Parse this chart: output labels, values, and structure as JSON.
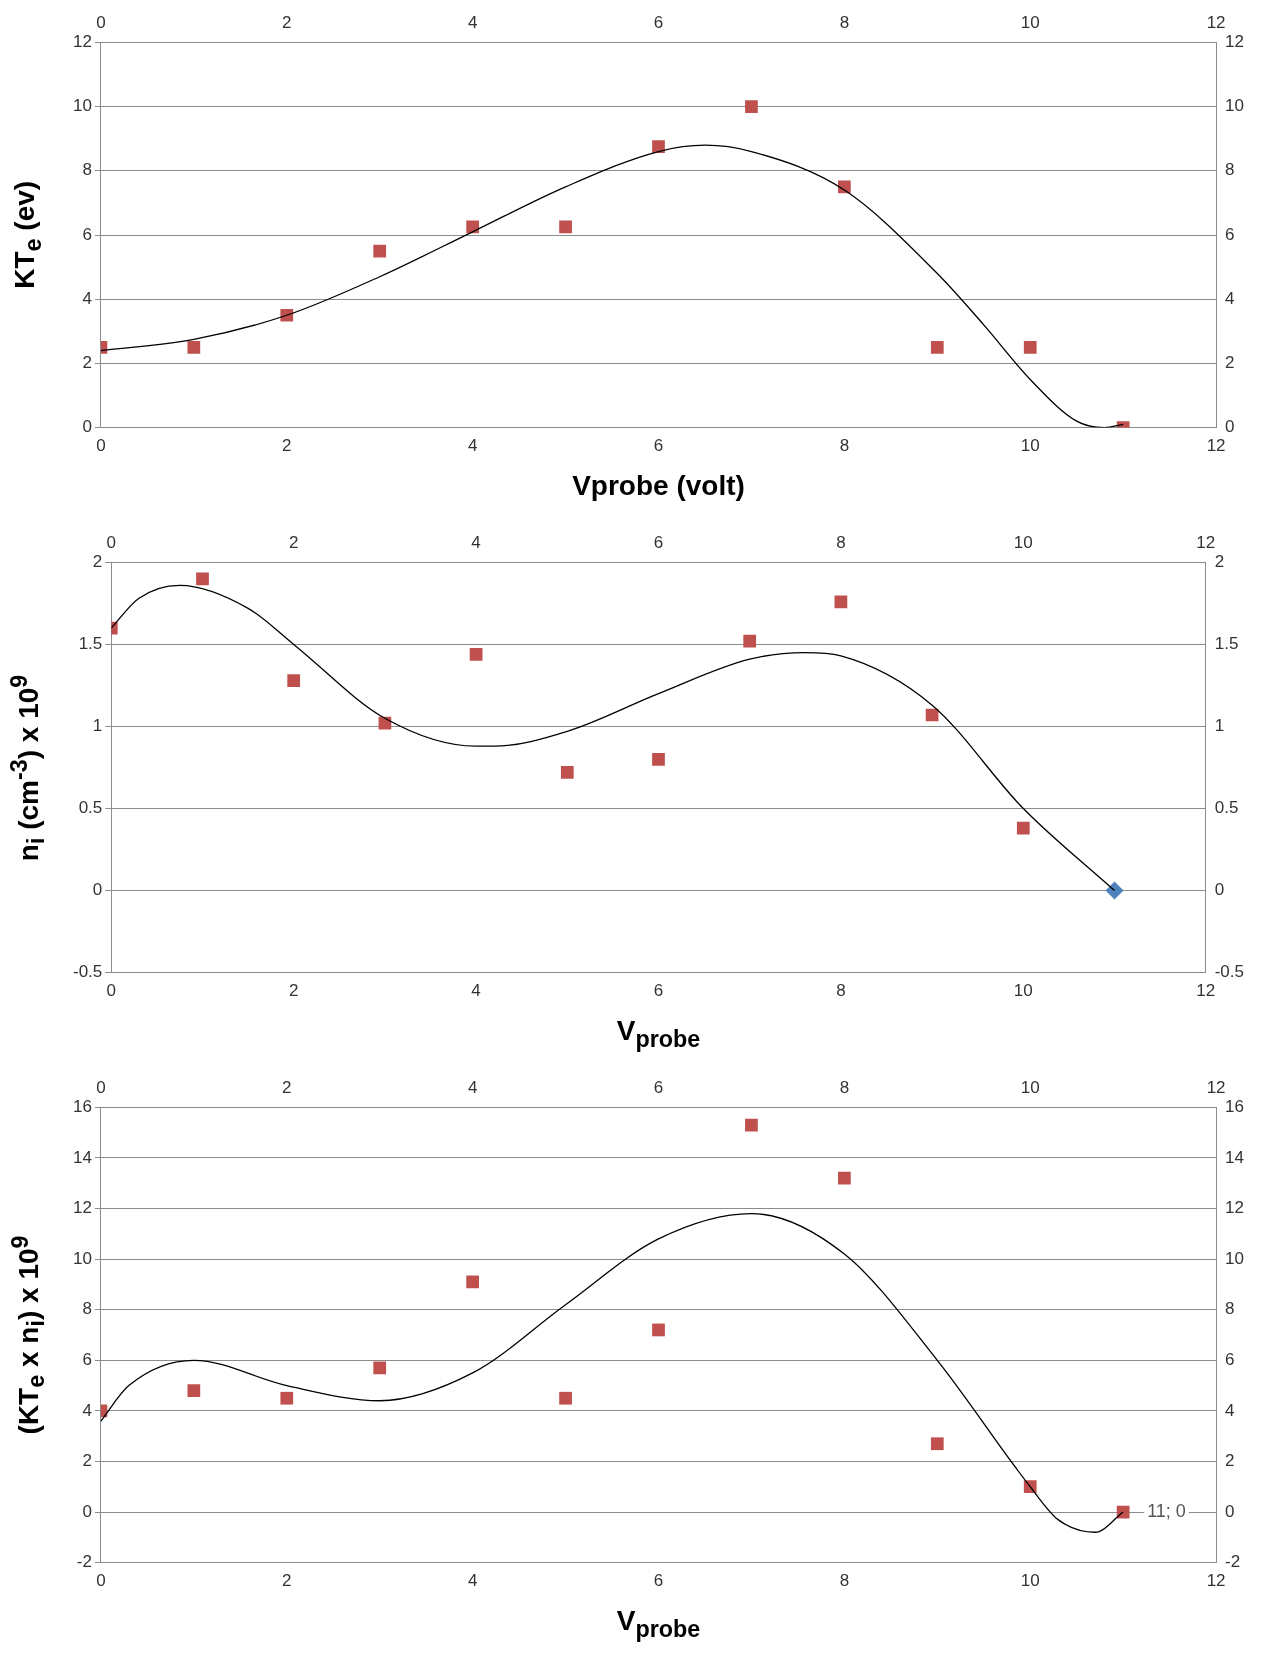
{
  "chart_data": [
    {
      "type": "scatter",
      "xlabel": "Vprobe (volt)",
      "ylabel": "KT$_{e}$ (ev)",
      "xlim": [
        0,
        12
      ],
      "xticks": [
        0,
        2,
        4,
        6,
        8,
        10,
        12
      ],
      "x2lim": [
        0,
        12
      ],
      "x2ticks": [
        0,
        2,
        4,
        6,
        8,
        10,
        12
      ],
      "ylim": [
        0,
        12
      ],
      "yticks": [
        0,
        2,
        4,
        6,
        8,
        10,
        12
      ],
      "y2lim": [
        0,
        12
      ],
      "y2ticks": [
        0,
        2,
        4,
        6,
        8,
        10,
        12
      ],
      "grid": "y",
      "legend": false,
      "series": [
        {
          "type": "scatter",
          "color": "#c0504d",
          "marker": "square",
          "x": [
            0,
            1,
            2,
            3,
            4,
            5,
            6,
            7,
            8,
            9,
            10,
            11
          ],
          "values": [
            2.5,
            2.5,
            3.5,
            5.5,
            6.25,
            6.25,
            8.75,
            10,
            7.5,
            2.5,
            2.5,
            0
          ]
        },
        {
          "type": "line",
          "color": "#000000",
          "marker": "none",
          "line_style": "solid",
          "x": [
            0,
            1,
            2,
            3,
            4,
            5,
            6,
            6.5,
            7,
            8,
            9,
            9.5,
            10,
            10.5,
            10.8,
            11
          ],
          "values": [
            2.4,
            2.75,
            3.5,
            4.7,
            6.1,
            7.5,
            8.6,
            8.8,
            8.6,
            7.4,
            4.8,
            3.2,
            1.5,
            0.2,
            0,
            0.1
          ]
        }
      ]
    },
    {
      "type": "scatter",
      "xlabel": "V$_{probe}$",
      "ylabel": "n$_{i}$ (cm$^{-3}$) x 10$^{9}$",
      "xlim": [
        0,
        12
      ],
      "xticks": [
        0,
        2,
        4,
        6,
        8,
        10,
        12
      ],
      "x2lim": [
        0,
        12
      ],
      "x2ticks": [
        0,
        2,
        4,
        6,
        8,
        10,
        12
      ],
      "ylim": [
        -0.5,
        2
      ],
      "yticks": [
        -0.5,
        0,
        0.5,
        1,
        1.5,
        2
      ],
      "y2lim": [
        -0.5,
        2
      ],
      "y2ticks": [
        -0.5,
        0,
        0.5,
        1,
        1.5,
        2
      ],
      "grid": "y",
      "legend": false,
      "series": [
        {
          "type": "scatter",
          "color": "#c0504d",
          "marker": "square",
          "x": [
            0,
            1,
            2,
            3,
            4,
            5,
            6,
            7,
            8,
            9,
            10
          ],
          "values": [
            1.6,
            1.9,
            1.28,
            1.02,
            1.44,
            0.72,
            0.8,
            1.52,
            1.76,
            1.07,
            0.38
          ]
        },
        {
          "type": "scatter",
          "color": "#4f81bd",
          "marker": "diamond",
          "x": [
            11
          ],
          "values": [
            0
          ]
        },
        {
          "type": "line",
          "color": "#000000",
          "marker": "none",
          "line_style": "solid",
          "x": [
            0,
            0.3,
            0.75,
            1.5,
            2,
            3,
            4,
            4.2,
            5,
            6,
            7,
            7.6,
            8,
            9,
            10,
            11
          ],
          "values": [
            1.6,
            1.78,
            1.86,
            1.72,
            1.5,
            1.05,
            0.88,
            0.88,
            0.97,
            1.2,
            1.41,
            1.45,
            1.43,
            1.13,
            0.5,
            0
          ]
        }
      ]
    },
    {
      "type": "scatter",
      "xlabel": "V$_{probe}$",
      "ylabel": "(KT$_{e}$ x n$_{i}$) x 10$^{9}$",
      "xlim": [
        0,
        12
      ],
      "xticks": [
        0,
        2,
        4,
        6,
        8,
        10,
        12
      ],
      "x2lim": [
        0,
        12
      ],
      "x2ticks": [
        0,
        2,
        4,
        6,
        8,
        10,
        12
      ],
      "ylim": [
        -2,
        16
      ],
      "yticks": [
        -2,
        0,
        2,
        4,
        6,
        8,
        10,
        12,
        14,
        16
      ],
      "y2lim": [
        -2,
        16
      ],
      "y2ticks": [
        -2,
        0,
        2,
        4,
        6,
        8,
        10,
        12,
        14,
        16
      ],
      "grid": "y",
      "legend": false,
      "annotations": [
        {
          "text": "11; 0",
          "x": 11,
          "y": 0
        }
      ],
      "series": [
        {
          "type": "scatter",
          "color": "#c0504d",
          "marker": "square",
          "x": [
            0,
            1,
            2,
            3,
            4,
            5,
            6,
            7,
            8,
            9,
            10,
            11
          ],
          "values": [
            4,
            4.8,
            4.5,
            5.7,
            9.1,
            4.5,
            7.2,
            15.3,
            13.2,
            2.7,
            1,
            0
          ]
        },
        {
          "type": "line",
          "color": "#000000",
          "marker": "none",
          "line_style": "solid",
          "x": [
            0,
            0.3,
            1,
            2,
            3,
            4,
            5,
            6,
            7,
            8,
            9,
            10,
            10.3,
            10.7,
            11
          ],
          "values": [
            3.6,
            5,
            6,
            5,
            4.4,
            5.5,
            8.2,
            10.8,
            11.8,
            10.2,
            6,
            1,
            -0.3,
            -0.8,
            0
          ]
        }
      ]
    }
  ]
}
